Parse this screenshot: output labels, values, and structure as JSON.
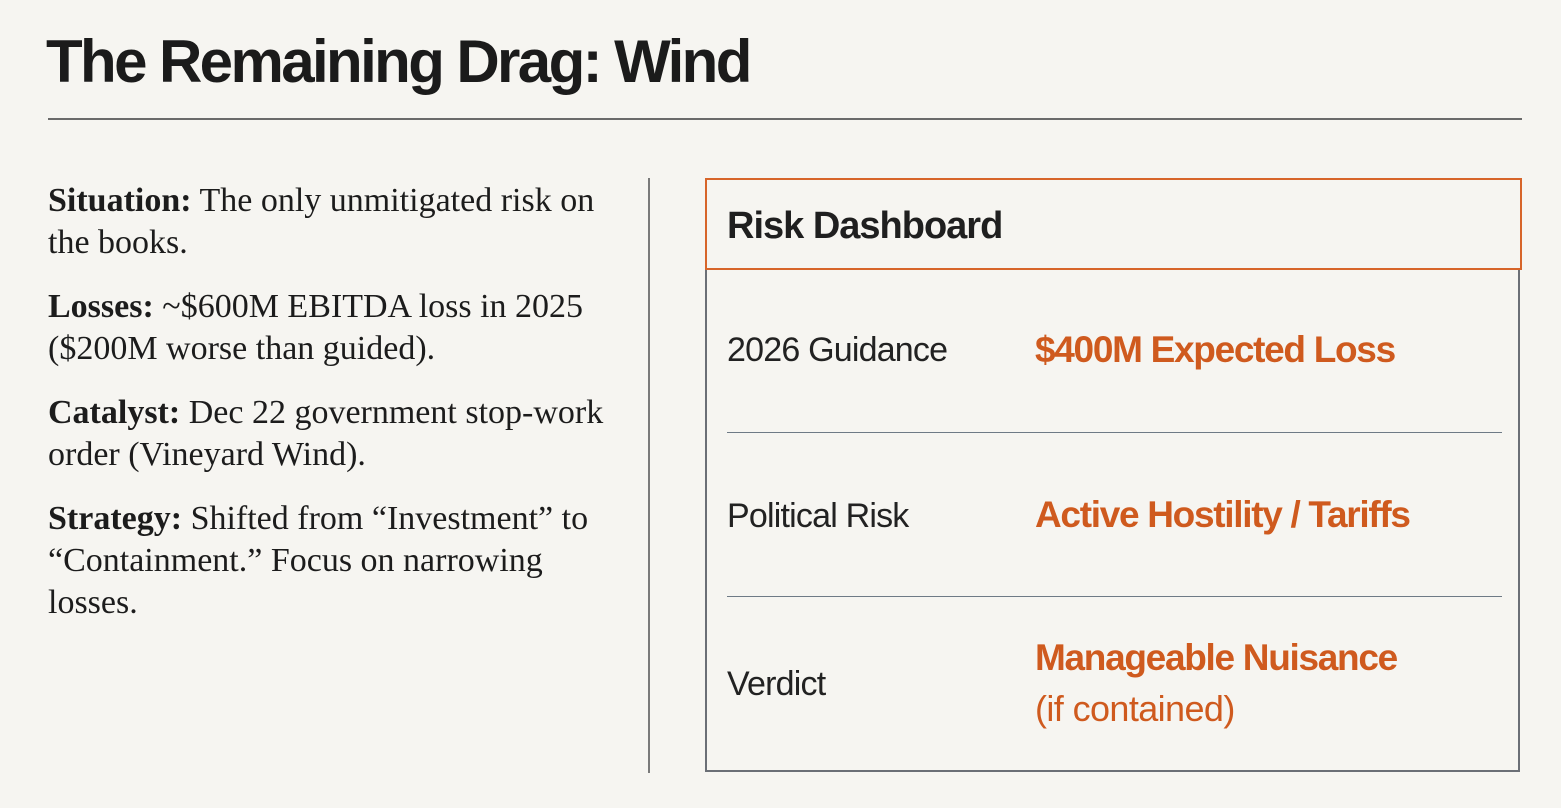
{
  "title": "The Remaining Drag: Wind",
  "points": [
    {
      "label": "Situation:",
      "text": " The only unmitigated risk on the books."
    },
    {
      "label": "Losses:",
      "text": " ~$600M EBITDA loss in 2025 ($200M worse than guided)."
    },
    {
      "label": "Catalyst:",
      "text": " Dec 22 government stop-work order (Vineyard Wind)."
    },
    {
      "label": "Strategy:",
      "text": " Shifted from “Investment” to “Containment.” Focus on narrowing losses."
    }
  ],
  "dashboard": {
    "title": "Risk Dashboard",
    "rows": [
      {
        "label": "2026 Guidance",
        "value": "$400M Expected Loss"
      },
      {
        "label": "Political Risk",
        "value": "Active Hostility / Tariffs"
      },
      {
        "label": "Verdict",
        "value": "Manageable Nuisance",
        "note": "(if contained)"
      }
    ]
  },
  "colors": {
    "accent": "#cf5a1e",
    "header_border": "#d7652a",
    "background": "#f6f5f1",
    "text": "#1c1c1c"
  }
}
